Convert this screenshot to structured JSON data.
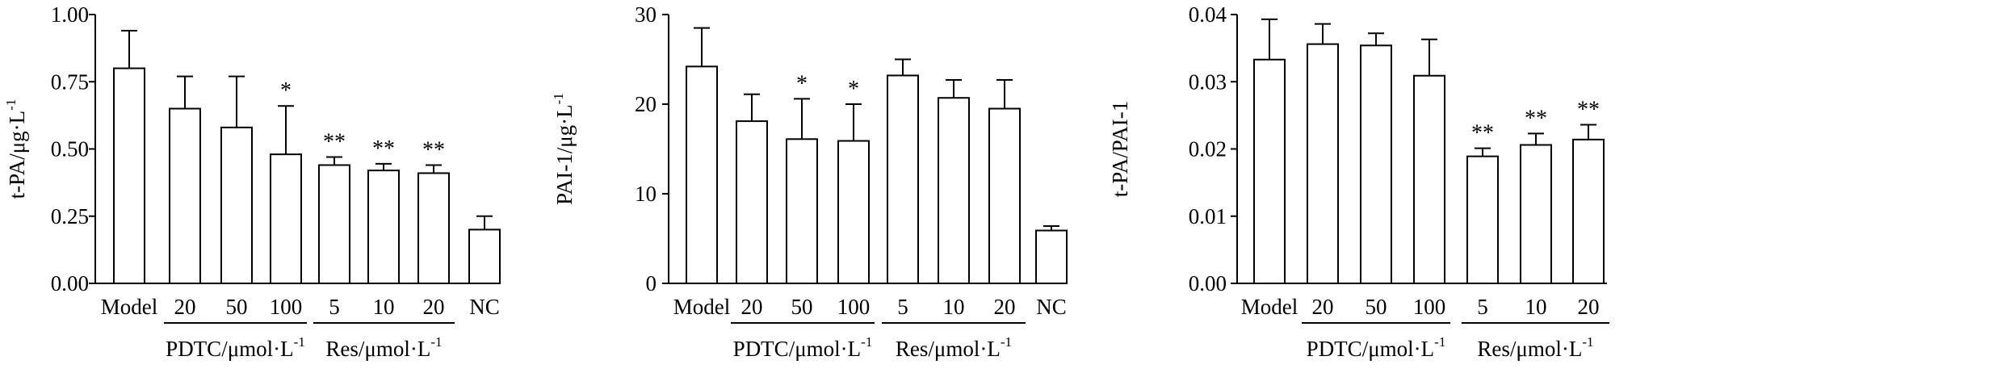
{
  "chart_data": [
    {
      "type": "bar",
      "ylabel": "t-PA/μg·L",
      "ylabel_sup": "-1",
      "ylim": [
        0,
        1.0
      ],
      "yticks": [
        "0.00",
        "0.25",
        "0.50",
        "0.75",
        "1.00"
      ],
      "ytick_values": [
        0,
        0.25,
        0.5,
        0.75,
        1.0
      ],
      "categories": [
        "Model",
        "20",
        "50",
        "100",
        "5",
        "10",
        "20",
        "NC"
      ],
      "values": [
        0.8,
        0.65,
        0.58,
        0.48,
        0.44,
        0.42,
        0.41,
        0.2
      ],
      "errors": [
        0.14,
        0.12,
        0.19,
        0.18,
        0.03,
        0.025,
        0.03,
        0.05
      ],
      "annotations": [
        "",
        "",
        "",
        "*",
        "**",
        "**",
        "**",
        ""
      ],
      "groups": [
        {
          "label": "PDTC/μmol·L",
          "sup": "-1",
          "start": 1,
          "end": 3
        },
        {
          "label": "Res/μmol·L",
          "sup": "-1",
          "start": 4,
          "end": 6
        }
      ]
    },
    {
      "type": "bar",
      "ylabel": "PAI-1/μg·L",
      "ylabel_sup": "-1",
      "ylim": [
        0,
        30
      ],
      "yticks": [
        "0",
        "10",
        "20",
        "30"
      ],
      "ytick_values": [
        0,
        10,
        20,
        30
      ],
      "categories": [
        "Model",
        "20",
        "50",
        "100",
        "5",
        "10",
        "20",
        "NC"
      ],
      "values": [
        24.2,
        18.1,
        16.1,
        15.9,
        23.2,
        20.7,
        19.5,
        5.9
      ],
      "errors": [
        4.3,
        3.0,
        4.5,
        4.1,
        1.8,
        2.0,
        3.2,
        0.5
      ],
      "annotations": [
        "",
        "",
        "*",
        "*",
        "",
        "",
        "",
        ""
      ],
      "groups": [
        {
          "label": "PDTC/μmol·L",
          "sup": "-1",
          "start": 1,
          "end": 3
        },
        {
          "label": "Res/μmol·L",
          "sup": "-1",
          "start": 4,
          "end": 6
        }
      ]
    },
    {
      "type": "bar",
      "ylabel": "t-PA/PAI-1",
      "ylabel_sup": "",
      "ylim": [
        0,
        0.04
      ],
      "yticks": [
        "0.00",
        "0.01",
        "0.02",
        "0.03",
        "0.04"
      ],
      "ytick_values": [
        0,
        0.01,
        0.02,
        0.03,
        0.04
      ],
      "categories": [
        "Model",
        "20",
        "50",
        "100",
        "5",
        "10",
        "20"
      ],
      "values": [
        0.0333,
        0.0356,
        0.0354,
        0.0309,
        0.0189,
        0.0206,
        0.0214
      ],
      "errors": [
        0.006,
        0.003,
        0.0018,
        0.0054,
        0.0012,
        0.0017,
        0.0022
      ],
      "annotations": [
        "",
        "",
        "",
        "",
        "**",
        "**",
        "**"
      ],
      "groups": [
        {
          "label": "PDTC/μmol·L",
          "sup": "-1",
          "start": 1,
          "end": 3
        },
        {
          "label": "Res/μmol·L",
          "sup": "-1",
          "start": 4,
          "end": 6
        }
      ]
    }
  ]
}
